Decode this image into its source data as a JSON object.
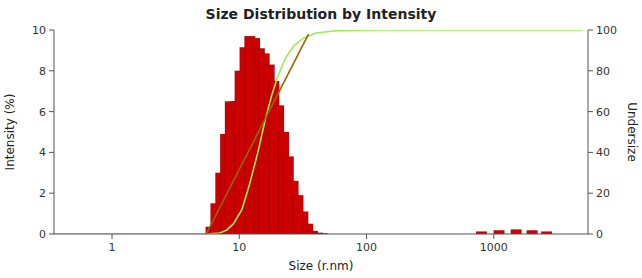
{
  "chart_data": {
    "type": "bar",
    "title": "Size Distribution by Intensity",
    "xlabel": "Size (r.nm)",
    "ylabel": "Intensity (%)",
    "y2label": "Undersize",
    "log": "x",
    "grid": false,
    "xlim": [
      0.35,
      5500
    ],
    "xticks": [
      1,
      10,
      100,
      1000
    ],
    "ylim": [
      0,
      10
    ],
    "yticks": [
      0,
      2,
      4,
      6,
      8,
      10
    ],
    "y2lim": [
      0,
      100
    ],
    "y2ticks": [
      0,
      20,
      40,
      60,
      80,
      100
    ],
    "series": [
      {
        "type": "bar",
        "color": "#cc0000",
        "x": [
          6.0,
          6.55,
          7.15,
          7.8,
          8.5,
          9.3,
          10.15,
          11.1,
          12.1,
          13.2,
          14.4,
          15.7,
          17.2,
          18.7,
          20.4,
          22.3,
          24.3,
          26.5,
          28.9,
          31.6,
          34.5,
          37.6,
          41.1,
          44.8,
          48.9,
          53.4,
          58.3,
          63.6,
          69.4,
          75.7,
          800,
          1100,
          1500,
          2000,
          2600
        ],
        "values": [
          0.35,
          1.5,
          3.0,
          4.9,
          6.5,
          6.5,
          8.0,
          9.15,
          9.7,
          9.6,
          9.1,
          8.85,
          8.3,
          7.5,
          6.3,
          5.0,
          3.8,
          2.6,
          1.9,
          1.1,
          0.5,
          0.15,
          0.06,
          0.04,
          0.0,
          0.0,
          0.0,
          0.0,
          0.0,
          0.0,
          0.12,
          0.18,
          0.22,
          0.18,
          0.12
        ]
      },
      {
        "type": "line",
        "axis": "y2",
        "color": "#99ee55",
        "x": [
          0.35,
          1.0,
          2.0,
          4.0,
          5.5,
          7.0,
          8.0,
          9.0,
          10.5,
          12.0,
          14.0,
          16.0,
          18.0,
          20.0,
          23.0,
          27.0,
          32.0,
          40.0,
          55.0,
          80.0,
          120.0,
          200.0,
          400.0,
          700.0,
          1500.0,
          5000.0
        ],
        "values": [
          0,
          0,
          0,
          0,
          0,
          0.5,
          2.0,
          5.0,
          12.0,
          24.0,
          40.0,
          56.0,
          68.0,
          77.0,
          86.0,
          92.5,
          96.0,
          98.5,
          99.5,
          99.9,
          100.0,
          100.0,
          100.0,
          100.0,
          100.0,
          100.0
        ]
      },
      {
        "type": "line",
        "color": "#996600",
        "x": [
          5.5,
          35.0
        ],
        "values": [
          0.0,
          9.8
        ]
      }
    ]
  }
}
